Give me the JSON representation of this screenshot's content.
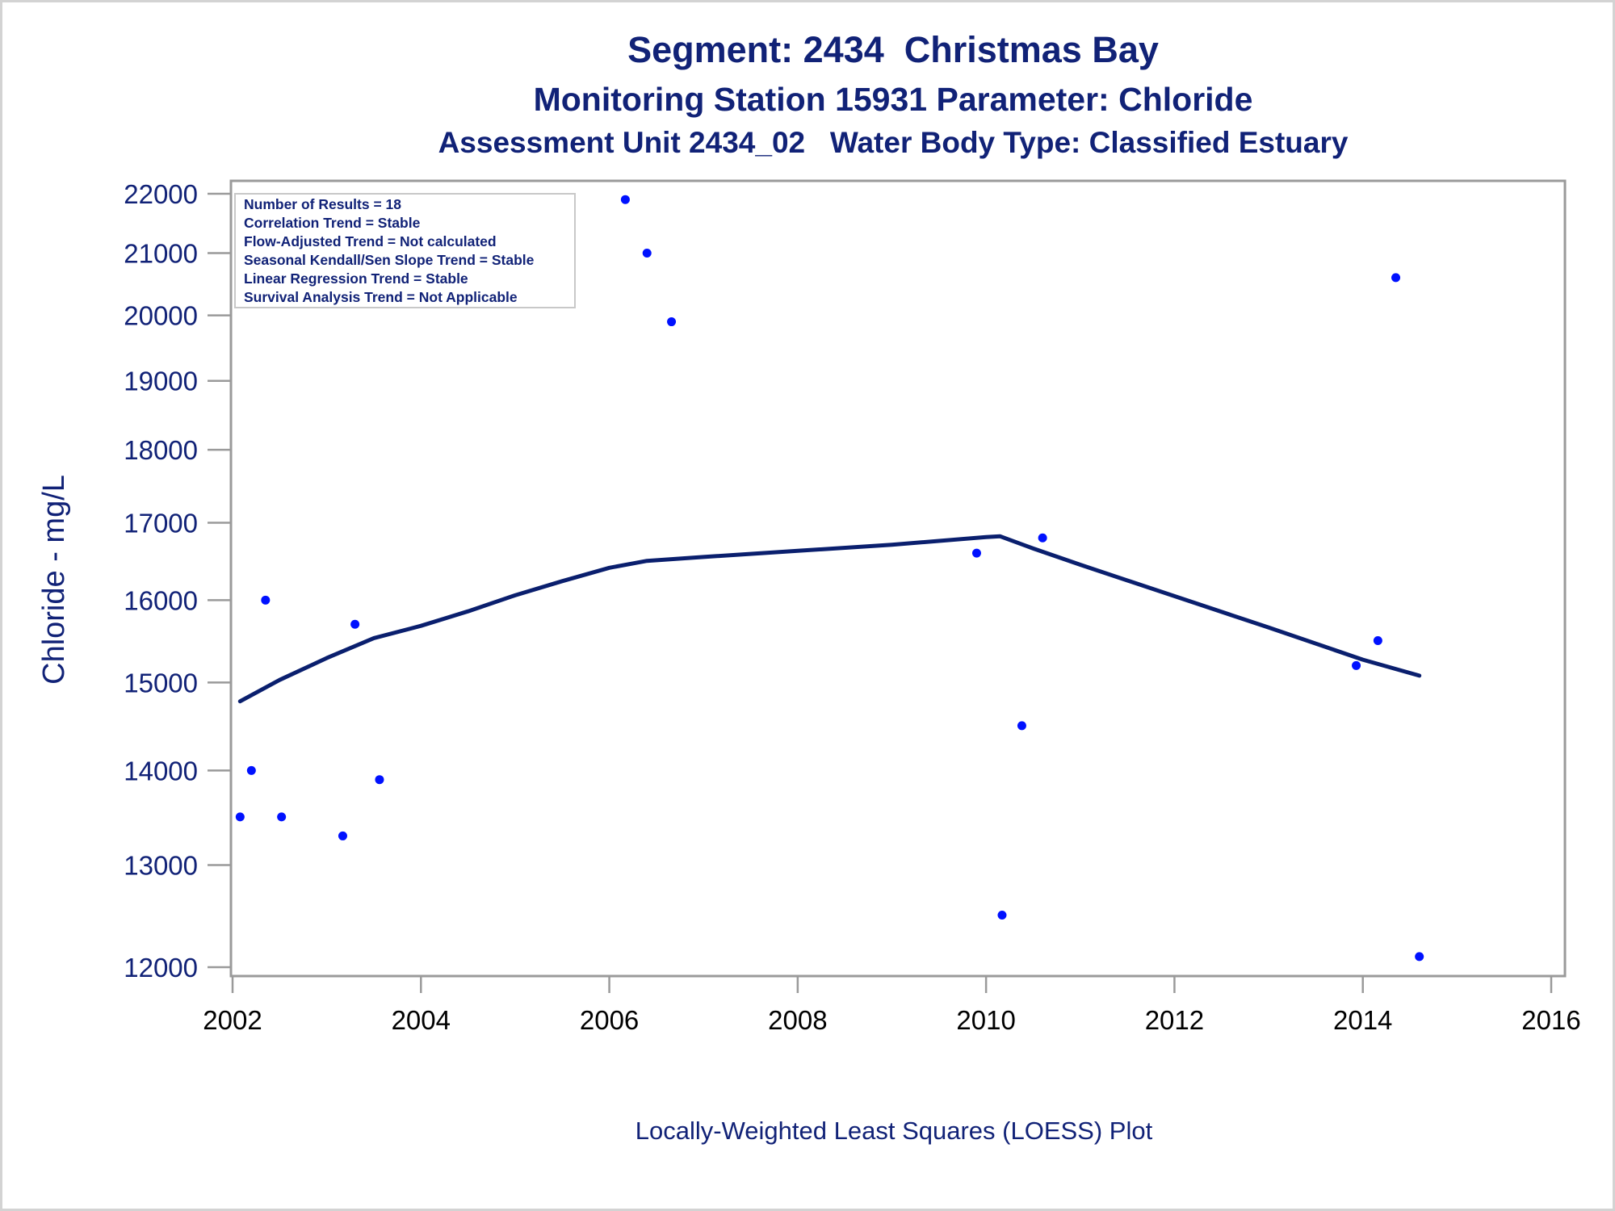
{
  "titles": {
    "line1": "Segment: 2434  Christmas Bay",
    "line2": "Monitoring Station 15931 Parameter: Chloride",
    "line3": "Assessment Unit 2434_02   Water Body Type: Classified Estuary"
  },
  "inset": [
    "Number of Results = 18",
    "Correlation Trend = Stable",
    "Flow-Adjusted Trend = Not calculated",
    "Seasonal Kendall/Sen Slope Trend = Stable",
    "Linear Regression Trend = Stable",
    "Survival Analysis Trend = Not Applicable"
  ],
  "footnote": "Locally-Weighted Least Squares (LOESS) Plot",
  "colors": {
    "text": "#112277",
    "points": "#0011ff",
    "loess_line": "#0a1f6e",
    "axis": "#9a9a9a"
  },
  "chart_data": {
    "type": "scatter",
    "ylabel": "Chloride - mg/L",
    "xlabel": "",
    "y_scale": "log",
    "xlim": [
      2002,
      2016
    ],
    "ylim": [
      12000,
      22000
    ],
    "x_ticks": [
      2002,
      2004,
      2006,
      2008,
      2010,
      2012,
      2014,
      2016
    ],
    "y_ticks": [
      12000,
      13000,
      14000,
      15000,
      16000,
      17000,
      18000,
      19000,
      20000,
      21000,
      22000
    ],
    "grid": false,
    "series": [
      {
        "type": "scatter",
        "x": [
          2002.08,
          2002.2,
          2002.35,
          2002.52,
          2003.17,
          2003.3,
          2003.56,
          2006.17,
          2006.4,
          2006.66,
          2009.9,
          2010.17,
          2010.38,
          2010.6,
          2013.93,
          2014.16,
          2014.35,
          2014.6
        ],
        "y": [
          13500,
          14000,
          16000,
          13500,
          13300,
          15700,
          13900,
          21900,
          21000,
          19900,
          16600,
          12500,
          14500,
          16800,
          15200,
          15500,
          20600,
          12100
        ]
      },
      {
        "type": "line",
        "x": [
          2002.08,
          2002.5,
          2003.0,
          2003.5,
          2004.0,
          2004.5,
          2005.0,
          2005.5,
          2006.0,
          2006.4,
          2007.0,
          2008.0,
          2009.0,
          2010.0,
          2010.15,
          2010.5,
          2011.0,
          2012.0,
          2013.0,
          2014.0,
          2014.6
        ],
        "y": [
          14780,
          15030,
          15290,
          15530,
          15680,
          15860,
          16060,
          16240,
          16410,
          16500,
          16550,
          16630,
          16710,
          16810,
          16820,
          16660,
          16450,
          16050,
          15660,
          15270,
          15080
        ]
      }
    ]
  }
}
